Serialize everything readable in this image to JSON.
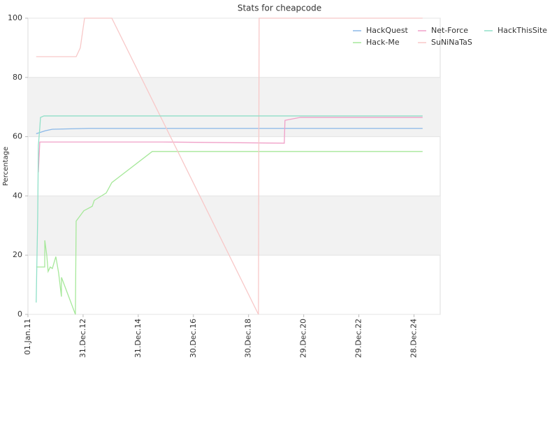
{
  "chart_data": {
    "type": "line",
    "title": "Stats for cheapcode",
    "y_label": "Percentage",
    "xlim": [
      "2011-01-01",
      "2025-12-10"
    ],
    "xticks": [
      {
        "value": "2011-01-01",
        "label": "01.Jan.11"
      },
      {
        "value": "2012-12-31",
        "label": "31.Dec.12"
      },
      {
        "value": "2014-12-31",
        "label": "31.Dec.14"
      },
      {
        "value": "2016-12-30",
        "label": "30.Dec.16"
      },
      {
        "value": "2018-12-30",
        "label": "30.Dec.18"
      },
      {
        "value": "2020-12-29",
        "label": "29.Dec.20"
      },
      {
        "value": "2022-12-29",
        "label": "29.Dec.22"
      },
      {
        "value": "2024-12-28",
        "label": "28.Dec.24"
      }
    ],
    "ylim": [
      0,
      100
    ],
    "yticks": [
      0,
      20,
      40,
      60,
      80,
      100
    ],
    "grid": true,
    "legend": "top-right",
    "series": [
      {
        "name": "HackQuest",
        "color": "#8ab8e8",
        "x": [
          "2011-04-20",
          "2011-08-19",
          "2011-11-20",
          "2013-03-15",
          "2025-04-21"
        ],
        "values": [
          61,
          62,
          62.5,
          62.8,
          62.8
        ]
      },
      {
        "name": "Hack-Me",
        "color": "#a6e89a",
        "x": [
          "2011-04-20",
          "2011-08-11",
          "2011-08-12",
          "2011-09-07",
          "2011-09-25",
          "2011-10-23",
          "2011-11-20",
          "2012-01-05",
          "2012-02-11",
          "2012-03-19",
          "2012-03-20",
          "2012-09-20",
          "2012-09-30",
          "2013-01-10",
          "2013-05-01",
          "2013-05-28",
          "2013-11-02",
          "2014-01-15",
          "2015-07-04",
          "2025-04-21"
        ],
        "values": [
          16,
          16,
          25,
          20,
          14.5,
          16,
          15.5,
          19.5,
          14,
          6,
          12.5,
          0,
          31.5,
          35,
          36.5,
          38.5,
          41,
          44.5,
          55,
          55
        ]
      },
      {
        "name": "Net-Force",
        "color": "#f0a0c8",
        "x": [
          "2011-05-19",
          "2011-06-07",
          "2015-11-20",
          "2020-04-16",
          "2020-04-25",
          "2020-11-14",
          "2025-04-21"
        ],
        "values": [
          48,
          58.2,
          58.2,
          57.8,
          65.5,
          66.5,
          66.5
        ]
      },
      {
        "name": "SuNiNaTaS",
        "color": "#f8c8c8",
        "x": [
          "2011-04-20",
          "2012-09-30",
          "2012-11-24",
          "2013-01-19",
          "2014-01-15",
          "2019-05-10",
          "2019-05-19",
          "2025-04-21"
        ],
        "values": [
          87,
          87,
          90,
          100,
          100,
          0,
          100,
          100
        ]
      },
      {
        "name": "HackThisSite",
        "color": "#90e0c8",
        "x": [
          "2011-04-20",
          "2011-05-10",
          "2011-05-19",
          "2011-06-07",
          "2011-06-16",
          "2011-08-01",
          "2025-04-21"
        ],
        "values": [
          4,
          33,
          57,
          63,
          66.5,
          67,
          67
        ]
      }
    ]
  }
}
